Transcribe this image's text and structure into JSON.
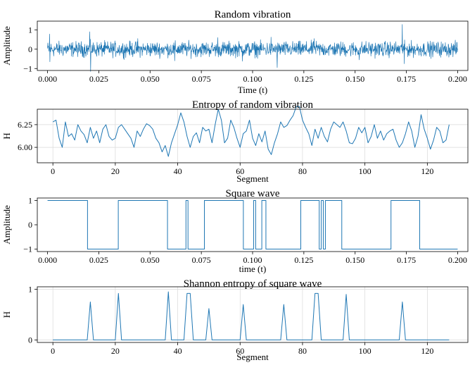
{
  "colors": {
    "series": "#1f77b4",
    "grid": "#d9d9d9",
    "axis": "#000000"
  },
  "chart_data": [
    {
      "type": "line",
      "title": "Random vibration",
      "xlabel": "Time (t)",
      "ylabel": "Amplitude",
      "xlim": [
        -0.005,
        0.205
      ],
      "ylim": [
        -1.1,
        1.45
      ],
      "xticks": [
        0.0,
        0.025,
        0.05,
        0.075,
        0.1,
        0.125,
        0.15,
        0.175,
        0.2
      ],
      "xticklabels": [
        "0.000",
        "0.025",
        "0.050",
        "0.075",
        "0.100",
        "0.125",
        "0.150",
        "0.175",
        "0.200"
      ],
      "yticks": [
        -1,
        0,
        1
      ],
      "yticklabels": [
        "−1",
        "0",
        "1"
      ],
      "grid": false,
      "series": [
        {
          "x_range": [
            0.0,
            0.2
          ],
          "approx_amplitude": 0.3,
          "peaks": [
            {
              "x": 0.001,
              "y": 0.78
            },
            {
              "x": 0.0012,
              "y": -0.65
            },
            {
              "x": 0.021,
              "y": -1.15
            },
            {
              "x": 0.0205,
              "y": 0.9
            },
            {
              "x": 0.173,
              "y": 1.28
            },
            {
              "x": 0.174,
              "y": -0.75
            },
            {
              "x": 0.044,
              "y": 0.55
            },
            {
              "x": 0.062,
              "y": -0.6
            },
            {
              "x": 0.083,
              "y": 0.6
            },
            {
              "x": 0.095,
              "y": -0.62
            },
            {
              "x": 0.109,
              "y": 0.62
            },
            {
              "x": 0.112,
              "y": -0.95
            },
            {
              "x": 0.13,
              "y": 0.55
            },
            {
              "x": 0.152,
              "y": -0.55
            }
          ]
        }
      ]
    },
    {
      "type": "line",
      "title": "Entropy of random vibration",
      "xlabel": "Segment",
      "ylabel": "H",
      "xlim": [
        -5,
        133
      ],
      "ylim": [
        5.83,
        6.42
      ],
      "xticks": [
        0,
        20,
        40,
        60,
        80,
        100,
        120
      ],
      "xticklabels": [
        "0",
        "20",
        "40",
        "60",
        "80",
        "100",
        "120"
      ],
      "yticks": [
        6.0,
        6.25
      ],
      "yticklabels": [
        "6.00",
        "6.25"
      ],
      "grid": true,
      "series": [
        {
          "x_start": 0,
          "y": [
            6.28,
            6.3,
            6.1,
            6.0,
            6.28,
            6.12,
            6.15,
            6.08,
            6.25,
            6.18,
            6.14,
            6.05,
            6.22,
            6.1,
            6.18,
            6.05,
            6.2,
            6.25,
            6.12,
            6.08,
            6.1,
            6.22,
            6.25,
            6.2,
            6.15,
            6.1,
            6.0,
            6.18,
            6.12,
            6.2,
            6.26,
            6.24,
            6.2,
            6.1,
            6.05,
            5.95,
            6.02,
            5.9,
            6.05,
            6.15,
            6.25,
            6.38,
            6.28,
            6.12,
            6.0,
            6.12,
            6.16,
            6.05,
            6.22,
            6.18,
            6.2,
            6.05,
            6.25,
            6.42,
            6.3,
            6.05,
            6.1,
            6.3,
            6.22,
            6.1,
            6.0,
            6.15,
            6.18,
            6.3,
            6.1,
            6.02,
            6.15,
            6.06,
            6.18,
            5.98,
            5.92,
            6.05,
            6.15,
            6.28,
            6.22,
            6.24,
            6.3,
            6.35,
            6.45,
            6.45,
            6.3,
            6.22,
            6.15,
            6.02,
            6.2,
            6.1,
            6.22,
            6.12,
            6.06,
            6.2,
            6.28,
            6.25,
            6.22,
            6.28,
            6.18,
            6.05,
            6.04,
            6.1,
            6.22,
            6.16,
            6.22,
            6.05,
            6.12,
            6.25,
            6.1,
            6.18,
            6.08,
            6.15,
            6.18,
            6.2,
            6.08,
            6.0,
            6.05,
            6.15,
            6.28,
            6.18,
            6.0,
            6.12,
            6.36,
            6.2,
            6.1,
            5.98,
            6.08,
            6.22,
            6.18,
            6.05,
            6.08,
            6.25
          ]
        }
      ]
    },
    {
      "type": "line",
      "title": "Square wave",
      "xlabel": "time (t)",
      "ylabel": "Amplitude",
      "xlim": [
        -0.005,
        0.205
      ],
      "ylim": [
        -1.1,
        1.1
      ],
      "xticks": [
        0.0,
        0.025,
        0.05,
        0.075,
        0.1,
        0.125,
        0.15,
        0.175,
        0.2
      ],
      "xticklabels": [
        "0.000",
        "0.025",
        "0.050",
        "0.075",
        "0.100",
        "0.125",
        "0.150",
        "0.175",
        "0.200"
      ],
      "yticks": [
        -1,
        0,
        1
      ],
      "yticklabels": [
        "−1",
        "0",
        "1"
      ],
      "grid": false,
      "series": [
        {
          "steps": [
            [
              0.0,
              1
            ],
            [
              0.0195,
              -1
            ],
            [
              0.0345,
              1
            ],
            [
              0.0585,
              -1
            ],
            [
              0.0675,
              1
            ],
            [
              0.0685,
              -1
            ],
            [
              0.0765,
              1
            ],
            [
              0.0955,
              -1
            ],
            [
              0.1005,
              1
            ],
            [
              0.1015,
              -1
            ],
            [
              0.1045,
              1
            ],
            [
              0.1065,
              -1
            ],
            [
              0.1235,
              1
            ],
            [
              0.1325,
              -1
            ],
            [
              0.1335,
              1
            ],
            [
              0.1345,
              -1
            ],
            [
              0.1355,
              1
            ],
            [
              0.1435,
              -1
            ],
            [
              0.1675,
              1
            ],
            [
              0.1815,
              -1
            ],
            [
              0.2,
              -1
            ]
          ]
        }
      ]
    },
    {
      "type": "line",
      "title": "Shannon entropy of square wave",
      "xlabel": "Segment",
      "ylabel": "H",
      "xlim": [
        -5,
        133
      ],
      "ylim": [
        -0.05,
        1.05
      ],
      "xticks": [
        0,
        20,
        40,
        60,
        80,
        100,
        120
      ],
      "xticklabels": [
        "0",
        "20",
        "40",
        "60",
        "80",
        "100",
        "120"
      ],
      "yticks": [
        0,
        1
      ],
      "yticklabels": [
        "0",
        "1"
      ],
      "grid": true,
      "series": [
        {
          "x_start": 0,
          "y": [
            0,
            0,
            0,
            0,
            0,
            0,
            0,
            0,
            0,
            0,
            0,
            0,
            0.75,
            0,
            0,
            0,
            0,
            0,
            0,
            0,
            0,
            0.92,
            0,
            0,
            0,
            0,
            0,
            0,
            0,
            0,
            0,
            0,
            0,
            0,
            0,
            0,
            0,
            0.95,
            0,
            0,
            0,
            0,
            0,
            0.92,
            0.92,
            0,
            0,
            0,
            0,
            0,
            0.62,
            0,
            0,
            0,
            0,
            0,
            0,
            0,
            0,
            0,
            0,
            0.7,
            0,
            0,
            0,
            0,
            0,
            0,
            0,
            0,
            0,
            0,
            0,
            0,
            0.7,
            0,
            0,
            0,
            0,
            0,
            0,
            0,
            0,
            0,
            0.92,
            0.92,
            0,
            0,
            0,
            0,
            0,
            0,
            0,
            0,
            0.9,
            0,
            0,
            0,
            0,
            0,
            0,
            0,
            0,
            0,
            0,
            0,
            0,
            0,
            0,
            0,
            0,
            0,
            0.75,
            0,
            0,
            0,
            0,
            0,
            0,
            0,
            0,
            0,
            0,
            0,
            0,
            0,
            0,
            0
          ]
        }
      ]
    }
  ]
}
